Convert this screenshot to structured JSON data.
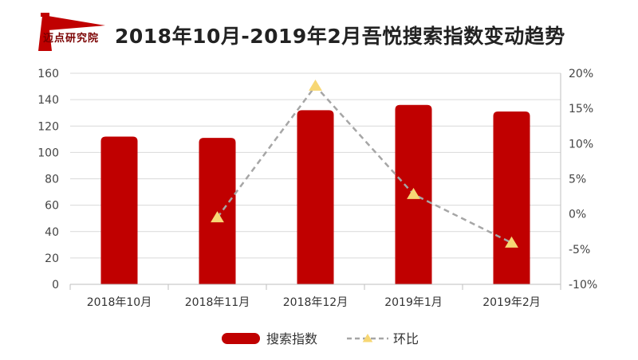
{
  "header": {
    "logo_text": "迈点研究院",
    "title": "2018年10月-2019年2月吾悦搜索指数变动趋势"
  },
  "colors": {
    "bar": "#c00000",
    "line": "#a6a6a6",
    "marker": "#f7d774",
    "grid": "#d9d9d9"
  },
  "chart_data": {
    "type": "bar",
    "title": "2018年10月-2019年2月吾悦搜索指数变动趋势",
    "categories": [
      "2018年10月",
      "2018年11月",
      "2018年12月",
      "2019年1月",
      "2019年2月"
    ],
    "series": [
      {
        "name": "搜索指数",
        "type": "bar",
        "axis": "left",
        "values": [
          112,
          111,
          132,
          136,
          131
        ]
      },
      {
        "name": "环比",
        "type": "line",
        "axis": "right",
        "style": "dashed",
        "marker": "triangle",
        "values": [
          null,
          -0.5,
          18.2,
          2.8,
          -4.1
        ]
      }
    ],
    "y_left": {
      "min": 0,
      "max": 160,
      "ticks": [
        "0",
        "20",
        "40",
        "60",
        "80",
        "100",
        "120",
        "140",
        "160"
      ]
    },
    "y_right": {
      "min": -10,
      "max": 20,
      "unit": "%",
      "ticks": [
        "-10%",
        "-5%",
        "0%",
        "5%",
        "10%",
        "15%",
        "20%"
      ]
    },
    "grid": true,
    "legend": "bottom"
  }
}
